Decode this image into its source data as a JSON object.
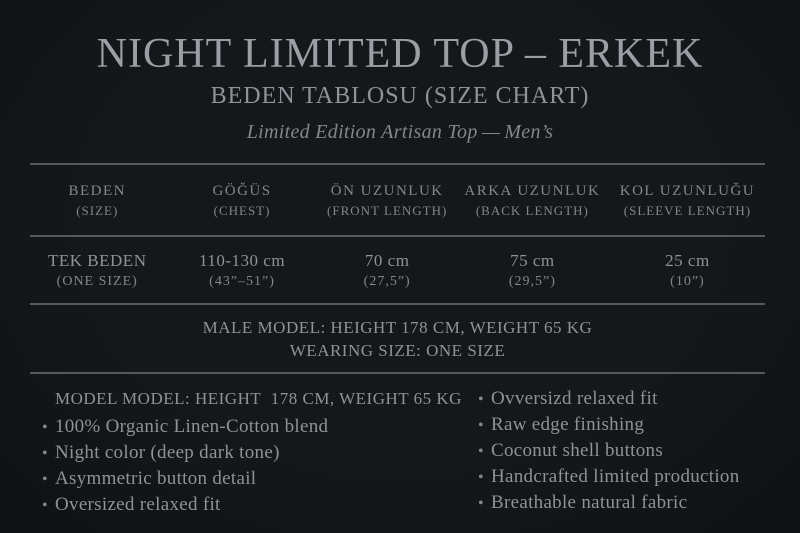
{
  "theme": {
    "background": "#15171b",
    "background_edge": "#0f1115",
    "text_primary": "#9b9ea4",
    "text_secondary": "#8f9298",
    "text_muted": "#83868c",
    "rule": "#565960"
  },
  "decor": {
    "bullet": "•"
  },
  "header": {
    "title": "NIGHT LIMITED TOP – ERKEK",
    "subtitle": "BEDEN TABLOSU (SIZE CHART)",
    "tagline": "Limited Edition Artisan Top — Men’s"
  },
  "size_table": {
    "columns": [
      {
        "label": "BEDEN",
        "sublabel": "(SIZE)"
      },
      {
        "label": "GÖĞÜS",
        "sublabel": "(CHEST)"
      },
      {
        "label": "ÖN UZUNLUK",
        "sublabel": "(FRONT LENGTH)"
      },
      {
        "label": "ARKA UZUNLUK",
        "sublabel": "(BACK LENGTH)"
      },
      {
        "label": "KOL UZUNLUĞU",
        "sublabel": "(SLEEVE LENGTH)"
      }
    ],
    "row": {
      "cells": [
        {
          "value": "TEK BEDEN",
          "subvalue": "(ONE SIZE)"
        },
        {
          "value": "110-130 cm",
          "subvalue": "(43”–51”)"
        },
        {
          "value": "70 cm",
          "subvalue": "(27,5”)"
        },
        {
          "value": "75 cm",
          "subvalue": "(29,5”)"
        },
        {
          "value": "25 cm",
          "subvalue": "(10”)"
        }
      ]
    }
  },
  "model_info": {
    "line1": "MALE MODEL: HEIGHT 178 CM, WEIGHT 65 KG",
    "line2": "WEARING SIZE: ONE SIZE"
  },
  "details": {
    "left": {
      "heading": "MODEL MODEL: HEIGHT  178 CM, WEIGHT 65 KG",
      "bullets": [
        "100% Organic Linen-Cotton blend",
        "Night color (deep dark tone)",
        "Asymmetric button detail",
        "Oversized relaxed fit"
      ]
    },
    "right": {
      "bullets": [
        "Ovversizd relaxed fit",
        "Raw edge finishing",
        "Coconut shell buttons",
        "Handcrafted limited production",
        "Breathable natural fabric"
      ]
    }
  }
}
